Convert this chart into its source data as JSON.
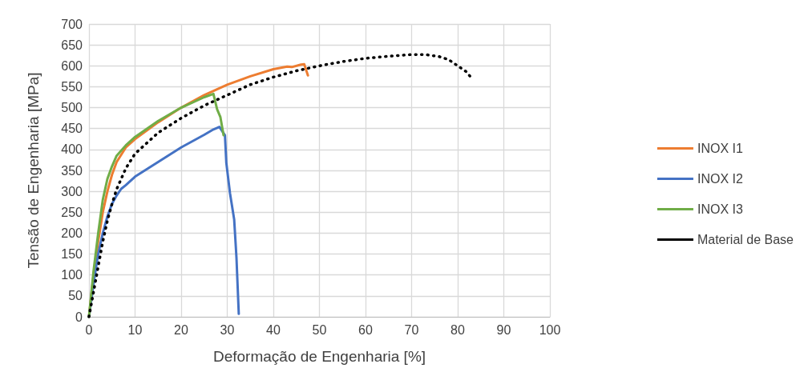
{
  "chart_data": {
    "type": "line",
    "xlabel": "Deformação de Engenharia [%]",
    "ylabel": "Tensão de Engenharia [MPa]",
    "xlim": [
      0,
      100
    ],
    "xticks": [
      0,
      10,
      20,
      30,
      40,
      50,
      60,
      70,
      80,
      90,
      100
    ],
    "ylim": [
      0,
      700
    ],
    "yticks": [
      0,
      50,
      100,
      150,
      200,
      250,
      300,
      350,
      400,
      450,
      500,
      550,
      600,
      650,
      700
    ],
    "grid": true,
    "legend": "right",
    "marker": "none",
    "series": [
      {
        "name": "INOX I1",
        "color": "#ed7d31",
        "line_style": "solid",
        "x": [
          0,
          1,
          2,
          3,
          4,
          5,
          6,
          8,
          10,
          15,
          20,
          25,
          30,
          35,
          40,
          43,
          44,
          46,
          46.7,
          47.5
        ],
        "values": [
          0,
          100,
          180,
          250,
          300,
          340,
          370,
          405,
          425,
          465,
          500,
          530,
          555,
          575,
          592,
          598,
          597,
          603,
          604,
          577
        ]
      },
      {
        "name": "INOX I2",
        "color": "#4472c4",
        "line_style": "solid",
        "x": [
          0,
          1,
          2,
          3,
          4,
          5,
          6,
          7,
          8,
          10,
          15,
          20,
          25,
          27,
          28.3,
          29.5,
          29.8,
          30.6,
          31.5,
          32,
          32.5
        ],
        "values": [
          0,
          80,
          150,
          200,
          240,
          270,
          290,
          306,
          315,
          335,
          370,
          405,
          435,
          448,
          454,
          434,
          368,
          295,
          233,
          141,
          7
        ]
      },
      {
        "name": "INOX I3",
        "color": "#70ad47",
        "line_style": "solid",
        "x": [
          0,
          1,
          2,
          3,
          4,
          5,
          6,
          8,
          10,
          15,
          20,
          25,
          27,
          27.8,
          28.5,
          29.2
        ],
        "values": [
          0,
          110,
          200,
          280,
          330,
          360,
          385,
          410,
          430,
          468,
          500,
          525,
          533,
          496,
          478,
          434
        ]
      },
      {
        "name": "Material de Base",
        "color": "#000000",
        "line_style": "dotted",
        "x": [
          0,
          1,
          2,
          3,
          4,
          5,
          6,
          8,
          10,
          15,
          20,
          25,
          30,
          35,
          40,
          45,
          50,
          55,
          60,
          65,
          70,
          73,
          76,
          78,
          80,
          82,
          83
        ],
        "values": [
          0,
          60,
          120,
          180,
          230,
          270,
          305,
          355,
          390,
          440,
          475,
          505,
          530,
          555,
          573,
          588,
          600,
          610,
          618,
          623,
          627,
          627,
          622,
          615,
          600,
          585,
          570
        ]
      }
    ]
  }
}
